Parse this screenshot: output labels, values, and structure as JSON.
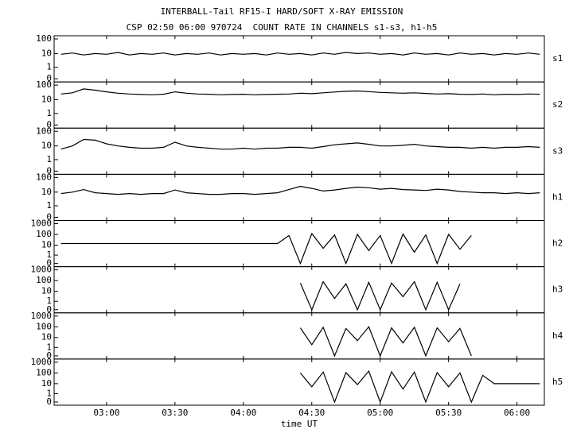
{
  "chart_data": {
    "type": "line",
    "yscale": "log",
    "title": "INTERBALL-Tail RF15-I HARD/SOFT X-RAY EMISSION",
    "subtitle": "CSP 02:50 06:00 970724  COUNT RATE IN CHANNELS s1-s3, h1-h5",
    "xlabel": "time UT",
    "xlim": [
      "02:37",
      "06:12"
    ],
    "xticks": [
      "03:00",
      "03:30",
      "04:00",
      "04:30",
      "05:00",
      "05:30",
      "06:00"
    ],
    "color": "#000000",
    "x": [
      "02:40",
      "02:45",
      "02:50",
      "02:55",
      "03:00",
      "03:05",
      "03:10",
      "03:15",
      "03:20",
      "03:25",
      "03:30",
      "03:35",
      "03:40",
      "03:45",
      "03:50",
      "03:55",
      "04:00",
      "04:05",
      "04:10",
      "04:15",
      "04:20",
      "04:25",
      "04:30",
      "04:35",
      "04:40",
      "04:45",
      "04:50",
      "04:55",
      "05:00",
      "05:05",
      "05:10",
      "05:15",
      "05:20",
      "05:25",
      "05:30",
      "05:35",
      "05:40",
      "05:45",
      "05:50",
      "05:55",
      "06:00",
      "06:05",
      "06:10"
    ],
    "panels": [
      {
        "name": "s1",
        "ylim": [
          0,
          100
        ],
        "yticks": [
          0,
          1,
          10,
          100
        ],
        "values": [
          9,
          11,
          8,
          10,
          9,
          12,
          8,
          10,
          9,
          11,
          8,
          10,
          9,
          11,
          8,
          10,
          9,
          10,
          8,
          11,
          9,
          10,
          8,
          11,
          9,
          12,
          10,
          11,
          9,
          10,
          8,
          11,
          9,
          10,
          8,
          11,
          9,
          10,
          8,
          10,
          9,
          11,
          9
        ]
      },
      {
        "name": "s2",
        "ylim": [
          0,
          100
        ],
        "yticks": [
          0,
          1,
          10,
          100
        ],
        "values": [
          25,
          30,
          55,
          45,
          35,
          28,
          25,
          23,
          22,
          24,
          35,
          28,
          25,
          24,
          22,
          23,
          24,
          22,
          23,
          24,
          25,
          28,
          26,
          30,
          34,
          38,
          40,
          36,
          32,
          30,
          28,
          30,
          27,
          25,
          26,
          24,
          23,
          25,
          22,
          24,
          23,
          25,
          24
        ]
      },
      {
        "name": "s3",
        "ylim": [
          0,
          100
        ],
        "yticks": [
          0,
          1,
          10,
          100
        ],
        "values": [
          6,
          10,
          28,
          25,
          14,
          10,
          8,
          7,
          7,
          8,
          18,
          10,
          8,
          7,
          6,
          6,
          7,
          6,
          7,
          7,
          8,
          8,
          7,
          9,
          12,
          14,
          16,
          13,
          10,
          10,
          11,
          13,
          10,
          9,
          8,
          8,
          7,
          8,
          7,
          8,
          8,
          9,
          8
        ]
      },
      {
        "name": "h1",
        "ylim": [
          0,
          100
        ],
        "yticks": [
          0,
          1,
          10,
          100
        ],
        "values": [
          8,
          10,
          15,
          9,
          8,
          7,
          8,
          7,
          8,
          8,
          14,
          9,
          8,
          7,
          7,
          8,
          8,
          7,
          8,
          9,
          15,
          25,
          18,
          12,
          14,
          18,
          22,
          20,
          16,
          18,
          15,
          14,
          13,
          16,
          14,
          11,
          10,
          9,
          9,
          8,
          9,
          8,
          9
        ]
      },
      {
        "name": "h2",
        "ylim": [
          0,
          1000
        ],
        "yticks": [
          0,
          1,
          10,
          100,
          1000
        ],
        "values": [
          14,
          14,
          14,
          14,
          14,
          14,
          14,
          14,
          14,
          14,
          14,
          14,
          14,
          14,
          14,
          14,
          14,
          14,
          14,
          14,
          80,
          0,
          120,
          5,
          90,
          0,
          100,
          3,
          80,
          0,
          110,
          2,
          90,
          0,
          100,
          4,
          80,
          null,
          null,
          null,
          null,
          null,
          null
        ]
      },
      {
        "name": "h3",
        "ylim": [
          0,
          1000
        ],
        "yticks": [
          0,
          1,
          10,
          100,
          1000
        ],
        "values": [
          null,
          null,
          null,
          null,
          null,
          null,
          null,
          null,
          null,
          null,
          null,
          null,
          null,
          null,
          null,
          null,
          null,
          null,
          null,
          null,
          null,
          60,
          0,
          80,
          2,
          50,
          0,
          70,
          0,
          60,
          3,
          80,
          0,
          70,
          0,
          50,
          null,
          null,
          null,
          null,
          null,
          null,
          null
        ]
      },
      {
        "name": "h4",
        "ylim": [
          0,
          1000
        ],
        "yticks": [
          0,
          1,
          10,
          100,
          1000
        ],
        "values": [
          null,
          null,
          null,
          null,
          null,
          null,
          null,
          null,
          null,
          null,
          null,
          null,
          null,
          null,
          null,
          null,
          null,
          null,
          null,
          null,
          null,
          80,
          2,
          90,
          0,
          70,
          5,
          100,
          0,
          80,
          3,
          90,
          0,
          80,
          4,
          70,
          0,
          null,
          null,
          null,
          null,
          null,
          null
        ]
      },
      {
        "name": "h5",
        "ylim": [
          0,
          1000
        ],
        "yticks": [
          0,
          1,
          10,
          100,
          1000
        ],
        "values": [
          null,
          null,
          null,
          null,
          null,
          null,
          null,
          null,
          null,
          null,
          null,
          null,
          null,
          null,
          null,
          null,
          null,
          null,
          null,
          null,
          null,
          100,
          5,
          120,
          0,
          110,
          8,
          150,
          0,
          130,
          3,
          120,
          0,
          110,
          5,
          100,
          0,
          60,
          10,
          10,
          10,
          10,
          10
        ]
      }
    ]
  }
}
